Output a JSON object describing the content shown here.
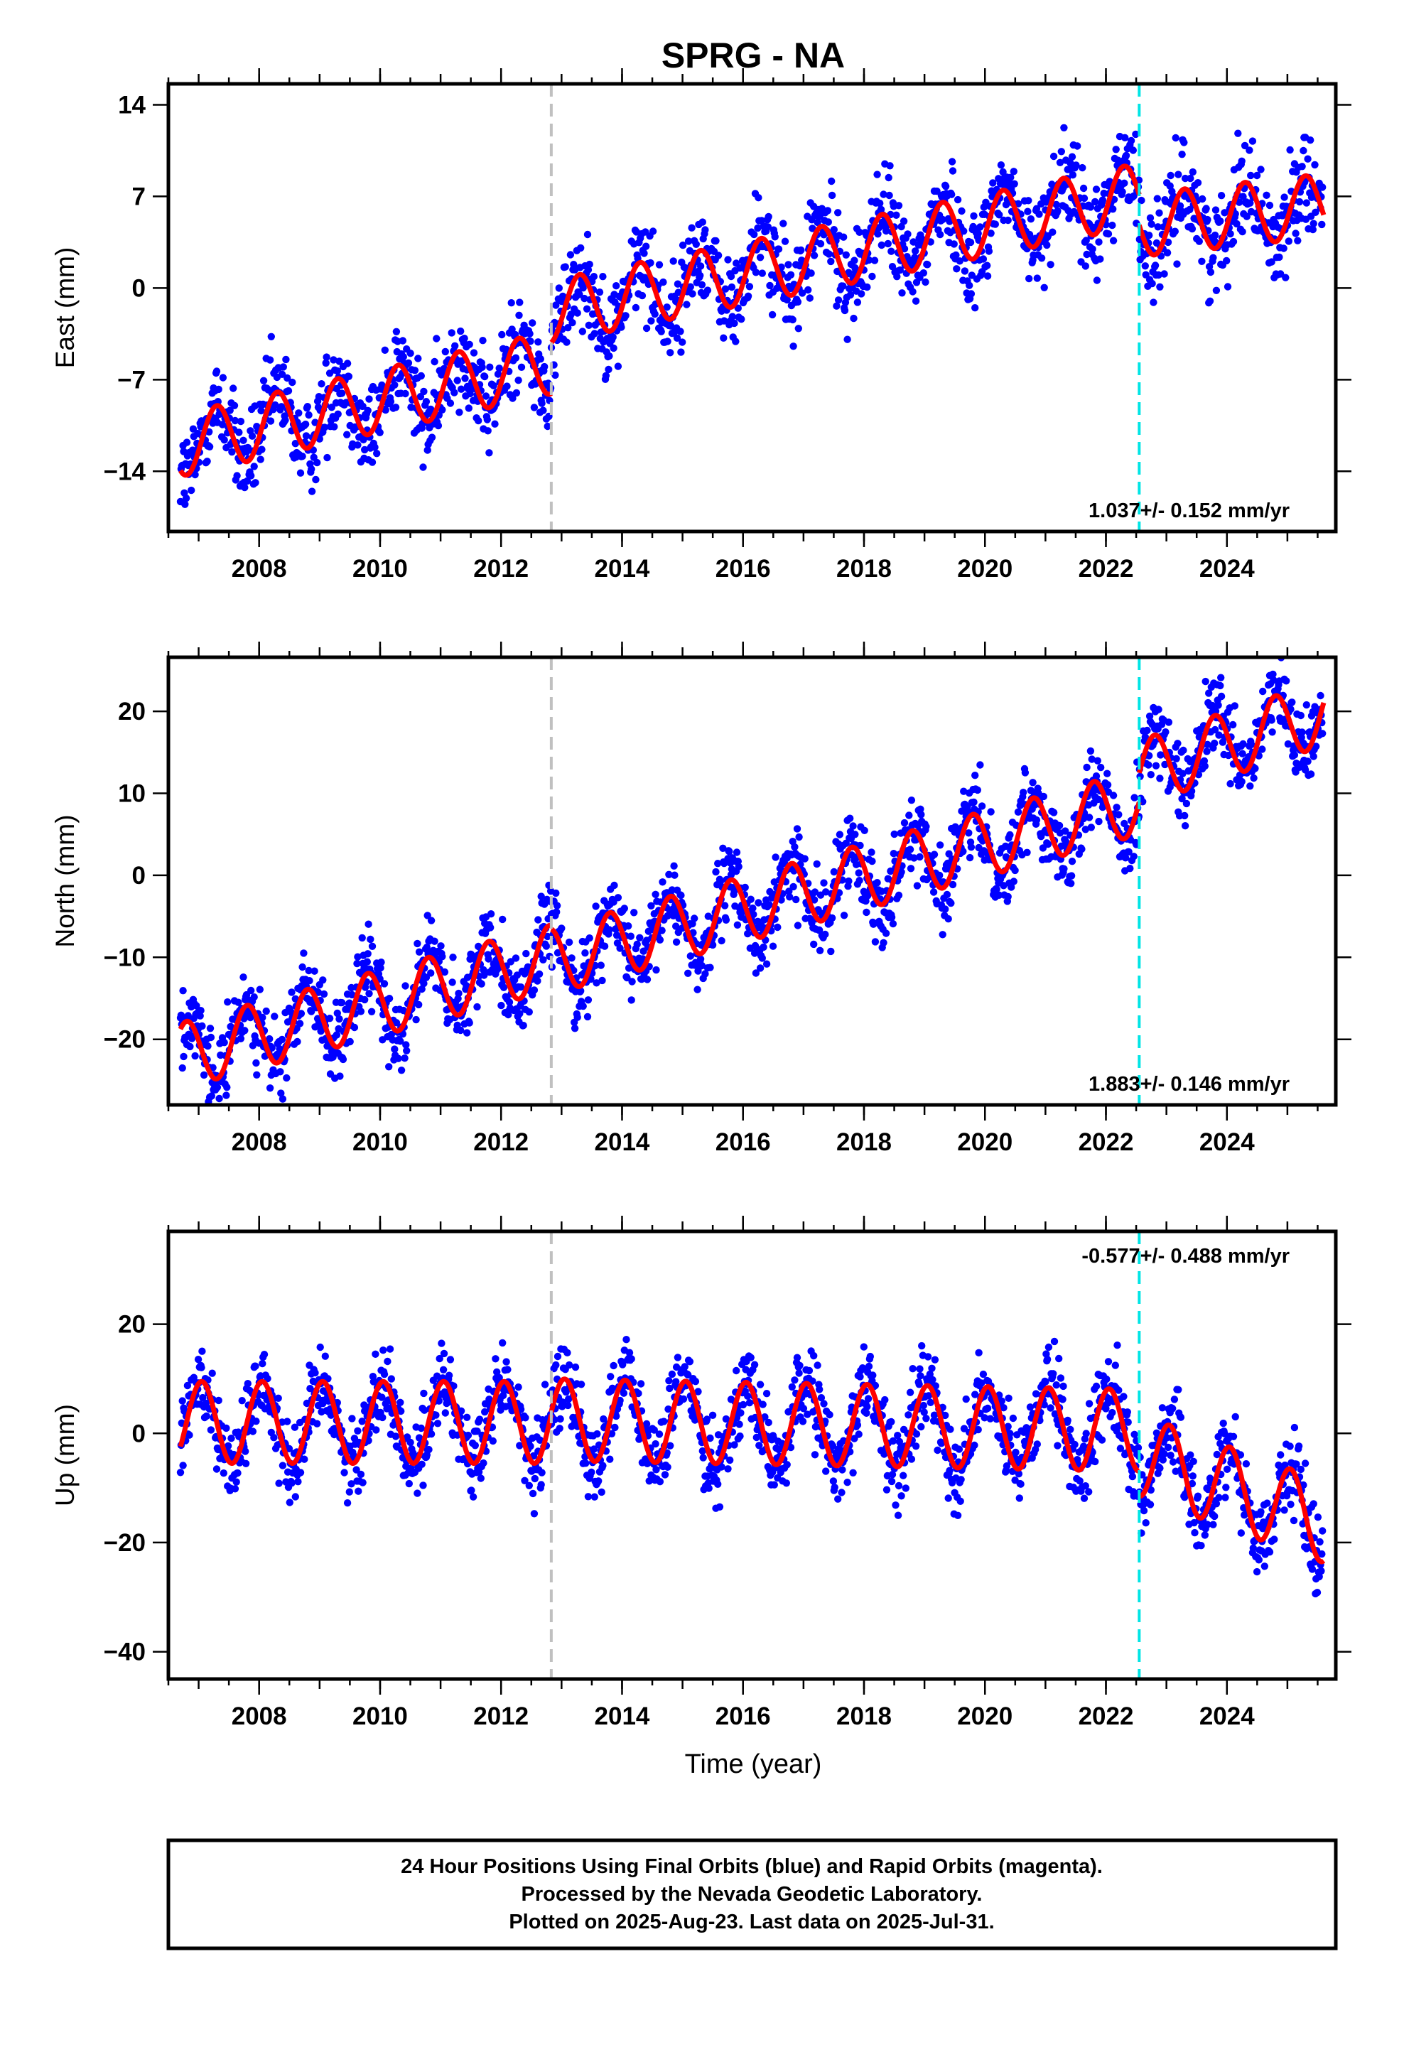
{
  "title": "SPRG - NA",
  "colors": {
    "final_orbits": "#0000ff",
    "model": "#ff0000",
    "equipment_change": "#c0c0c0",
    "earthquake_line": "#00e5e5"
  },
  "chart_data": [
    {
      "type": "scatter",
      "name": "east",
      "ylabel": "East (mm)",
      "xlim": [
        2006.5,
        2025.8
      ],
      "ylim": [
        -18.6,
        15.6
      ],
      "yticks": [
        -14,
        -7,
        0,
        7,
        14
      ],
      "xticks": [
        2008,
        2010,
        2012,
        2014,
        2016,
        2018,
        2020,
        2022,
        2024
      ],
      "rate_label": "1.037+/- 0.152 mm/yr",
      "rate_position": "bottom-right",
      "vlines": [
        2012.83,
        2022.55
      ],
      "model": {
        "segments": [
          {
            "t0": 2006.7,
            "t1": 2012.83,
            "base": -12.0,
            "rate": 1.03
          },
          {
            "t0": 2012.83,
            "t1": 2022.55,
            "base": -1.8,
            "rate": 0.92
          },
          {
            "t0": 2022.55,
            "t1": 2025.6,
            "base": 4.8,
            "rate": 0.5
          }
        ],
        "annual_amplitude": 2.4,
        "annual_phase": 0.05
      }
    },
    {
      "type": "scatter",
      "name": "north",
      "ylabel": "North (mm)",
      "xlim": [
        2006.5,
        2025.8
      ],
      "ylim": [
        -28,
        26.6
      ],
      "yticks": [
        -20,
        -10,
        0,
        10,
        20
      ],
      "xticks": [
        2008,
        2010,
        2012,
        2014,
        2016,
        2018,
        2020,
        2022,
        2024
      ],
      "rate_label": "1.883+/- 0.146 mm/yr",
      "rate_position": "bottom-right",
      "vlines": [
        2012.83,
        2022.55
      ],
      "model": {
        "segments": [
          {
            "t0": 2006.7,
            "t1": 2012.83,
            "base": -22.0,
            "rate": 1.95
          },
          {
            "t0": 2012.83,
            "t1": 2022.55,
            "base": -10.5,
            "rate": 2.0
          },
          {
            "t0": 2022.55,
            "t1": 2025.6,
            "base": 12.5,
            "rate": 2.4
          }
        ],
        "annual_amplitude": 4.0,
        "annual_phase": 0.55
      }
    },
    {
      "type": "scatter",
      "name": "up",
      "ylabel": "Up (mm)",
      "xlabel": "Time (year)",
      "xlim": [
        2006.5,
        2025.8
      ],
      "ylim": [
        -45,
        37
      ],
      "yticks": [
        -40,
        -20,
        0,
        20
      ],
      "xticks": [
        2008,
        2010,
        2012,
        2014,
        2016,
        2018,
        2020,
        2022,
        2024
      ],
      "rate_label": "-0.577+/- 0.488 mm/yr",
      "rate_position": "top-right",
      "vlines": [
        2012.83,
        2022.55
      ],
      "model": {
        "segments": [
          {
            "t0": 2006.7,
            "t1": 2012.83,
            "base": 2.0,
            "rate": 0.0
          },
          {
            "t0": 2012.83,
            "t1": 2022.55,
            "base": 2.5,
            "rate": -0.2
          },
          {
            "t0": 2022.55,
            "t1": 2025.6,
            "base": -4.0,
            "rate": -4.0
          }
        ],
        "annual_amplitude": 7.5,
        "annual_phase": 0.8
      }
    }
  ],
  "footer": {
    "line1": "24 Hour Positions Using Final Orbits (blue) and Rapid Orbits (magenta).",
    "line2": "Processed by the Nevada Geodetic Laboratory.",
    "line3": "Plotted on 2025-Aug-23. Last data on 2025-Jul-31."
  }
}
